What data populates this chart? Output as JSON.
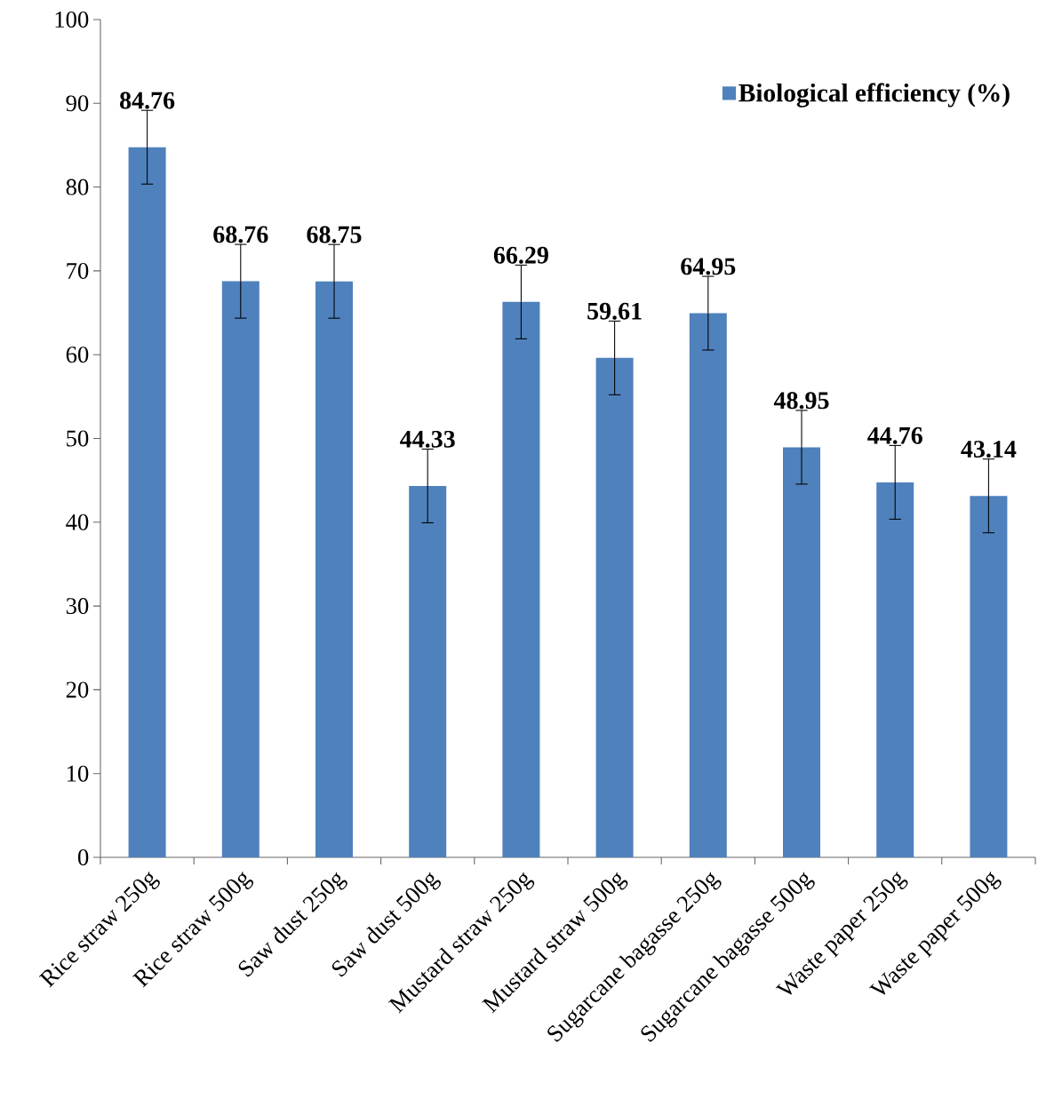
{
  "chart_data": {
    "type": "bar",
    "categories": [
      "Rice straw 250g",
      "Rice straw 500g",
      "Saw dust 250g",
      "Saw dust 500g",
      "Mustard straw 250g",
      "Mustard straw 500g",
      "Sugarcane bagasse 250g",
      "Sugarcane bagasse 500g",
      "Waste paper 250g",
      "Waste paper 500g"
    ],
    "series": [
      {
        "name": "Biological efficiency (%)",
        "color": "#4f81bd",
        "values": [
          84.76,
          68.76,
          68.75,
          44.33,
          66.29,
          59.61,
          64.95,
          48.95,
          44.76,
          43.14
        ],
        "errors": [
          4.4,
          4.4,
          4.4,
          4.4,
          4.4,
          4.4,
          4.4,
          4.4,
          4.4,
          4.4
        ]
      }
    ],
    "ylim": [
      0,
      100
    ],
    "yticks": [
      0,
      10,
      20,
      30,
      40,
      50,
      60,
      70,
      80,
      90,
      100
    ],
    "data_labels": true,
    "legend": "top right",
    "grid": false
  }
}
